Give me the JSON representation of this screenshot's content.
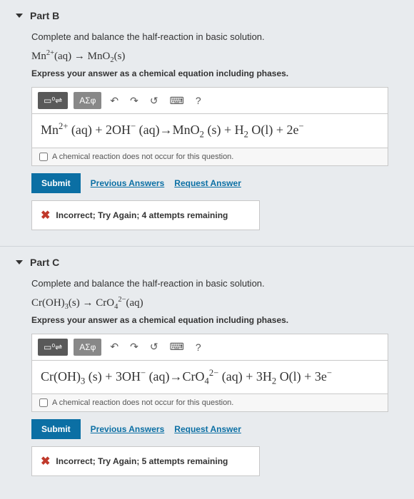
{
  "partB": {
    "title": "Part B",
    "prompt": "Complete and balance the half-reaction in basic solution.",
    "given_html": "Mn<sup>2+</sup>(aq) → MnO<sub>2</sub>(s)",
    "express": "Express your answer as a chemical equation including phases.",
    "toolbar": {
      "template_label": "▭⁰⇌",
      "greek_label": "ΑΣφ",
      "undo": "↶",
      "redo": "↷",
      "reset": "↺",
      "keyboard": "⌨",
      "help": "?"
    },
    "answer_html": "Mn<sup>2+</sup> (aq) + 2OH<sup>−</sup> (aq)→MnO<sub>2</sub> (s) + H<sub>2</sub> O(l) + 2e<sup>−</sup>",
    "no_reaction_label": "A chemical reaction does not occur for this question.",
    "submit": "Submit",
    "prev_answers": "Previous Answers",
    "request_answer": "Request Answer",
    "feedback": "Incorrect; Try Again; 4 attempts remaining"
  },
  "partC": {
    "title": "Part C",
    "prompt": "Complete and balance the half-reaction in basic solution.",
    "given_html": "Cr(OH)<sub>3</sub>(s) → CrO<sub>4</sub><sup>2−</sup>(aq)",
    "express": "Express your answer as a chemical equation including phases.",
    "toolbar": {
      "template_label": "▭⁰⇌",
      "greek_label": "ΑΣφ",
      "undo": "↶",
      "redo": "↷",
      "reset": "↺",
      "keyboard": "⌨",
      "help": "?"
    },
    "answer_html": "Cr(OH)<sub>3</sub> (s) + 3OH<sup>−</sup> (aq)→CrO<sub>4</sub><sup>2−</sup> (aq) + 3H<sub>2</sub> O(l) + 3e<sup>−</sup>",
    "no_reaction_label": "A chemical reaction does not occur for this question.",
    "submit": "Submit",
    "prev_answers": "Previous Answers",
    "request_answer": "Request Answer",
    "feedback": "Incorrect; Try Again; 5 attempts remaining"
  }
}
